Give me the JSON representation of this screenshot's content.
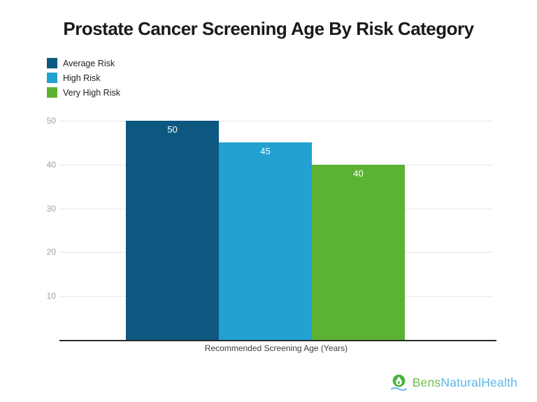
{
  "chart_data": {
    "type": "bar",
    "title": "Prostate Cancer Screening Age By Risk Category",
    "categories": [
      "Average Risk",
      "High Risk",
      "Very High Risk"
    ],
    "values": [
      50,
      45,
      40
    ],
    "bar_labels": [
      "50",
      "45",
      "40"
    ],
    "series_colors": [
      "#0d5880",
      "#21a2d1",
      "#5cb233"
    ],
    "xlabel": "Recommended Screening Age (Years)",
    "ylabel": "",
    "ylim": [
      0,
      50
    ],
    "yticks": [
      10,
      20,
      30,
      40,
      50
    ],
    "grid": true,
    "legend_position": "top-left"
  },
  "legend": {
    "items": [
      {
        "label": "Average Risk",
        "color": "#0d5880"
      },
      {
        "label": "High Risk",
        "color": "#21a2d1"
      },
      {
        "label": "Very High Risk",
        "color": "#5cb233"
      }
    ]
  },
  "colors": {
    "gridline": "#e6e6e6",
    "tick_text": "#a0a0a0",
    "axis_line": "#2b2b2b",
    "bar_label_text": "#ffffff"
  },
  "footer": {
    "brand_prefix": "Bens",
    "brand_suffix": "NaturalHealth",
    "prefix_color": "#6cc04a",
    "suffix_color": "#5bb7e6",
    "icon_green": "#46b43c",
    "icon_wave_blue": "#5bb7e6"
  }
}
